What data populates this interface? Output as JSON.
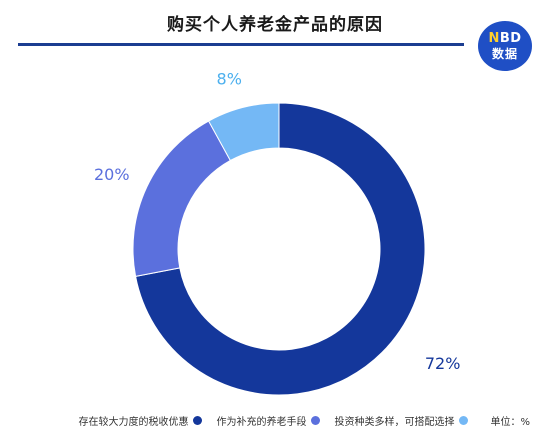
{
  "header": {
    "title": "购买个人养老金产品的原因",
    "logo": {
      "top_n": "N",
      "top_rest": "BD",
      "bottom": "数据"
    }
  },
  "colors": {
    "title_rule": "#1b3d91",
    "series": [
      "#14379b",
      "#5b70dd",
      "#74b8f5"
    ],
    "label": [
      "#14379b",
      "#5b70dd",
      "#4db0ee"
    ]
  },
  "chart_data": {
    "type": "pie",
    "variant": "donut",
    "unit_label": "单位：%",
    "slices": [
      {
        "name": "存在较大力度的税收优惠",
        "value": 72,
        "label": "72%"
      },
      {
        "name": "作为补充的养老手段",
        "value": 20,
        "label": "20%"
      },
      {
        "name": "投资种类多样，可搭配选择",
        "value": 8,
        "label": "8%"
      }
    ],
    "start_angle_deg": 0,
    "direction": "clockwise",
    "legend_position": "bottom-right"
  }
}
